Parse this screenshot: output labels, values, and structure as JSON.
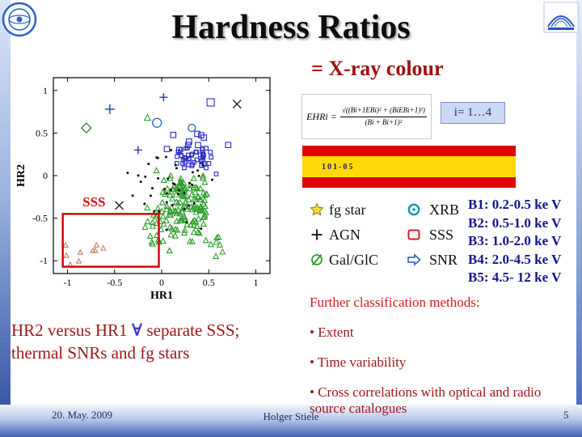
{
  "colors": {
    "accent_maroon": "#9e1515",
    "bright_red": "#cc1d1d",
    "navy_bands": "#16168c",
    "flag_red": "#dd0404",
    "flag_yellow": "#ffd90a",
    "green_marker": "#2f9e2f",
    "blue_marker": "#2828c8",
    "region_box_red": "#cc0000"
  },
  "header": {
    "title": "Hardness Ratios",
    "subtitle": "= X-ray colour"
  },
  "formula": {
    "lhs": "EHRi =",
    "numerator": "√((Bi+1EBi)² + (BiEBi+1)²)",
    "denominator": "(Bi + Bi+1)²",
    "index_range": "i= 1…4"
  },
  "overlay_marks": "101-05",
  "legend": {
    "items": [
      {
        "icon": "star-icon",
        "label": "fg star"
      },
      {
        "icon": "circle-dot-icon",
        "label": "XRB"
      },
      {
        "icon": "plus-icon",
        "label": "AGN"
      },
      {
        "icon": "square-icon",
        "label": "SSS"
      },
      {
        "icon": "crossed-circle-icon",
        "label": "Gal/GlC"
      },
      {
        "icon": "arrow-icon",
        "label": "SNR"
      }
    ]
  },
  "energy_bands": [
    "B1: 0.2-0.5 ke V",
    "B2: 0.5-1.0 ke V",
    "B3: 1.0-2.0 ke V",
    "B4: 2.0-4.5 ke V",
    "B5: 4.5- 12 ke V"
  ],
  "classification": {
    "title": "Further classification methods:",
    "items": [
      "Extent",
      "Time variability",
      "Cross correlations with optical and radio source catalogues"
    ]
  },
  "caption": {
    "part1": "HR2 versus HR1 ",
    "symbol": "∀",
    "part2": " separate SSS;",
    "line2": "thermal SNRs and fg stars"
  },
  "footer": {
    "date": "20. May. 2009",
    "author": "Holger Stiele",
    "page": "5"
  },
  "chart_data": {
    "type": "scatter",
    "xlabel": "HR1",
    "ylabel": "HR2",
    "xlim": [
      -1.15,
      1.15
    ],
    "ylim": [
      -1.15,
      1.15
    ],
    "x_ticks": [
      -1,
      -0.5,
      0,
      0.5,
      1
    ],
    "y_ticks": [
      -1,
      -0.5,
      0,
      0.5,
      1
    ],
    "annotation": "SSS",
    "annotation_pos": {
      "x": -0.84,
      "y": -0.36
    },
    "region_box": {
      "x0": -1.05,
      "x1": -0.03,
      "y0": -1.07,
      "y1": -0.45
    },
    "clusters": [
      {
        "marker": "triangle",
        "color": "#2f9e2f",
        "count": 120,
        "cx": 0.3,
        "cy": -0.3,
        "sx": 0.21,
        "sy": 0.25,
        "size": 3.4,
        "seed": 11
      },
      {
        "marker": "triangle",
        "color": "#2f9e2f",
        "count": 32,
        "cx": 0.02,
        "cy": -0.55,
        "sx": 0.13,
        "sy": 0.2,
        "size": 3.4,
        "seed": 22
      },
      {
        "marker": "triangle",
        "color": "#2f9e2f",
        "count": 10,
        "cx": 0.55,
        "cy": -0.75,
        "sx": 0.18,
        "sy": 0.12,
        "size": 3.4,
        "seed": 77
      },
      {
        "marker": "square",
        "color": "#2828c8",
        "count": 46,
        "cx": 0.33,
        "cy": 0.2,
        "sx": 0.17,
        "sy": 0.1,
        "size": 4.6,
        "seed": 33
      },
      {
        "marker": "square",
        "color": "#2828c8",
        "count": 10,
        "cx": 0.28,
        "cy": 0.42,
        "sx": 0.28,
        "sy": 0.1,
        "size": 6.5,
        "seed": 44
      },
      {
        "marker": "dot",
        "color": "#111111",
        "count": 42,
        "cx": 0.12,
        "cy": -0.12,
        "sx": 0.32,
        "sy": 0.33,
        "size": 1.5,
        "seed": 55
      },
      {
        "marker": "triangle",
        "color": "#cc7a5e",
        "count": 9,
        "cx": -0.78,
        "cy": -0.9,
        "sx": 0.16,
        "sy": 0.09,
        "size": 3.0,
        "seed": 66
      }
    ],
    "points": [
      {
        "marker": "plus",
        "x": -0.55,
        "y": 0.78,
        "color": "#2838b8",
        "size": 6
      },
      {
        "marker": "plus",
        "x": 0.02,
        "y": 0.92,
        "color": "#2838b8",
        "size": 5
      },
      {
        "marker": "plus",
        "x": -0.25,
        "y": 0.3,
        "color": "#2838b8",
        "size": 5
      },
      {
        "marker": "x",
        "x": 0.8,
        "y": 0.84,
        "color": "#222222",
        "size": 5
      },
      {
        "marker": "x",
        "x": -0.45,
        "y": -0.35,
        "color": "#222222",
        "size": 5
      },
      {
        "marker": "square",
        "x": 0.52,
        "y": 0.86,
        "color": "#2828c8",
        "size": 9
      },
      {
        "marker": "diamond",
        "x": -0.8,
        "y": 0.56,
        "color": "#2f7a2f",
        "size": 6
      },
      {
        "marker": "circle",
        "x": -0.05,
        "y": 0.62,
        "color": "#2a6ac0",
        "size": 5.5
      },
      {
        "marker": "circle",
        "x": 0.32,
        "y": 0.56,
        "color": "#2a6ac0",
        "size": 4.5
      },
      {
        "marker": "triangle",
        "x": -0.15,
        "y": 0.68,
        "color": "#2f9e2f",
        "size": 4
      }
    ]
  }
}
